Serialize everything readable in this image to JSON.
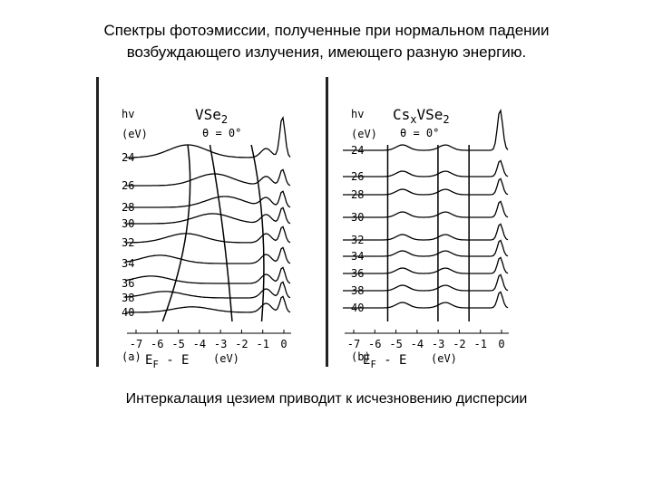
{
  "title": [
    "Спектры фотоэмиссии, полученные при нормальном падении",
    "возбуждающего излучения, имеющего разную энергию."
  ],
  "caption": "Интеркалация цезием приводит к исчезновению дисперсии",
  "panels": [
    {
      "label": "(a)",
      "hv": "hv",
      "hv_unit": "(eV)",
      "formula": [
        "VSe",
        "2"
      ],
      "angle": "θ = 0°",
      "energies": [
        24,
        26,
        28,
        30,
        32,
        34,
        36,
        38,
        40
      ],
      "xticks": [
        -7,
        -6,
        -5,
        -4,
        -3,
        -2,
        -1,
        0
      ],
      "xlabel": [
        "E",
        "F",
        " - E"
      ],
      "xunit": "(eV)"
    },
    {
      "label": "(b)",
      "hv": "hv",
      "hv_unit": "(eV)",
      "formula": [
        "Cs",
        "x",
        "VSe",
        "2"
      ],
      "angle": "θ = 0°",
      "energies": [
        24,
        26,
        28,
        30,
        32,
        34,
        36,
        38,
        40
      ],
      "xticks": [
        -7,
        -6,
        -5,
        -4,
        -3,
        -2,
        -1,
        0
      ],
      "xlabel": [
        "E",
        "F",
        " - E"
      ],
      "xunit": "(eV)"
    }
  ]
}
